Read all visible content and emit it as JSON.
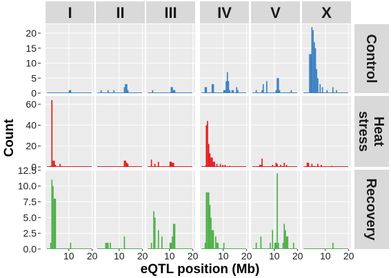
{
  "chart_data": {
    "type": "bar",
    "facet_layout": "grid",
    "xlabel": "eQTL position (Mb)",
    "ylabel": "Count",
    "x_ticks": [
      10,
      20
    ],
    "x_range": [
      0,
      21
    ],
    "panel_background": "#ebebeb",
    "strip_background": "#d9d9d9",
    "columns": [
      "I",
      "II",
      "III",
      "IV",
      "V",
      "X"
    ],
    "rows": [
      {
        "label_lines": [
          "Control"
        ],
        "color": "#3a7fc1",
        "ylim": [
          0,
          23
        ],
        "y_ticks": [
          0,
          5,
          10,
          15,
          20
        ],
        "y_tick_labels": [
          "0",
          "5",
          "10",
          "15",
          "20"
        ],
        "panels": [
          {
            "x": [
              10,
              10.5
            ],
            "y": [
              1,
              1
            ]
          },
          {
            "x": [
              2,
              5,
              7.5,
              12,
              12.5,
              13,
              13.5
            ],
            "y": [
              1,
              1,
              1,
              2,
              3,
              3,
              1
            ]
          },
          {
            "x": [
              2.5,
              10.5,
              11,
              11.5,
              12
            ],
            "y": [
              1,
              2,
              2,
              1,
              1
            ]
          },
          {
            "x": [
              2,
              2.5,
              5,
              5.5,
              10,
              10.5,
              11,
              11.5,
              12,
              12.5,
              13.5,
              14,
              15.5,
              16
            ],
            "y": [
              2,
              2,
              3,
              3,
              1,
              1,
              4,
              7,
              4,
              1,
              1,
              1,
              2,
              1
            ]
          },
          {
            "x": [
              2,
              4.5,
              5,
              6.5,
              10.5,
              11,
              11.5,
              12,
              17
            ],
            "y": [
              1,
              1,
              3,
              4,
              1,
              5,
              5,
              1,
              1
            ]
          },
          {
            "x": [
              3,
              3.5,
              4,
              4.5,
              5,
              5.5,
              6,
              6.5,
              7.5,
              8.5,
              10.5,
              13,
              14.5
            ],
            "y": [
              13,
              13,
              22,
              21,
              17,
              15,
              8,
              5,
              3,
              2,
              1,
              2,
              1
            ]
          }
        ]
      },
      {
        "label_lines": [
          "Heat",
          "stress"
        ],
        "color": "#e41a1c",
        "ylim": [
          0,
          68
        ],
        "y_ticks": [
          0,
          20,
          40,
          60
        ],
        "y_tick_labels": [
          "0",
          "20",
          "40",
          "60"
        ],
        "panels": [
          {
            "x": [
              2,
              2.5,
              3,
              3.5,
              4,
              6
            ],
            "y": [
              1,
              64,
              6,
              6,
              2,
              3
            ]
          },
          {
            "x": [
              12,
              12.5,
              13,
              13.5
            ],
            "y": [
              6,
              6,
              4,
              3
            ]
          },
          {
            "x": [
              2,
              3.5,
              5,
              10,
              10.5,
              11,
              11.5
            ],
            "y": [
              7,
              3,
              5,
              5,
              5,
              4,
              4
            ]
          },
          {
            "x": [
              2,
              2.5,
              3,
              3.5,
              4,
              4.5,
              5,
              5.5,
              6,
              7,
              8.5,
              9.5,
              10.5,
              12.5
            ],
            "y": [
              1,
              40,
              44,
              22,
              13,
              9,
              9,
              5,
              5,
              3,
              3,
              2,
              2,
              1
            ]
          },
          {
            "x": [
              3.5,
              4,
              4.5,
              9,
              10.5,
              11,
              12.5,
              14,
              15
            ],
            "y": [
              2,
              2,
              8,
              2,
              4,
              3,
              2,
              4,
              2
            ]
          },
          {
            "x": [
              2,
              2.5,
              4,
              5,
              6.5,
              8,
              12.5
            ],
            "y": [
              4,
              4,
              3,
              1,
              3,
              2,
              1
            ]
          }
        ]
      },
      {
        "label_lines": [
          "Recovery"
        ],
        "color": "#4daf4a",
        "ylim": [
          0,
          12.6
        ],
        "y_ticks": [
          0,
          2.5,
          5,
          7.5,
          10,
          12.5
        ],
        "y_tick_labels": [
          "0.0",
          "2.5",
          "5.0",
          "7.5",
          "10.0",
          "12.5"
        ],
        "panels": [
          {
            "x": [
              2,
              2.5,
              3,
              3.5,
              4,
              10.5
            ],
            "y": [
              1,
              11,
              10,
              8,
              8,
              1
            ]
          },
          {
            "x": [
              4,
              4.5,
              5,
              6,
              12
            ],
            "y": [
              1,
              1,
              1,
              1,
              2
            ]
          },
          {
            "x": [
              2,
              3,
              3.5,
              5,
              6.5,
              10,
              10.5,
              11,
              11.5,
              12
            ],
            "y": [
              1,
              6,
              5,
              3,
              2,
              1,
              1,
              2,
              4,
              4
            ]
          },
          {
            "x": [
              2,
              2.5,
              3,
              3.5,
              4,
              4.5,
              5,
              5.5,
              6.5,
              7,
              7.5,
              10
            ],
            "y": [
              1,
              9,
              9,
              9,
              7,
              5,
              3,
              3,
              2,
              1,
              1,
              1
            ]
          },
          {
            "x": [
              2,
              4,
              8,
              9,
              10,
              10.5,
              11,
              11.5,
              13.5,
              14,
              14.5,
              15,
              15.5,
              18
            ],
            "y": [
              1,
              2,
              1,
              3,
              1,
              1,
              12,
              1,
              1,
              4,
              3,
              2,
              2,
              1
            ]
          },
          {
            "x": [
              13
            ],
            "y": [
              1
            ]
          }
        ]
      }
    ]
  }
}
